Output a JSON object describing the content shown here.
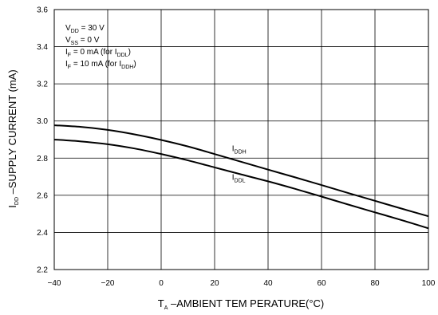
{
  "chart_data": {
    "type": "line",
    "title": "",
    "xlabel": {
      "main": "T",
      "sub": "A",
      "rest": " –AMBIENT TEM PERATURE(°C)"
    },
    "ylabel": {
      "main": "I",
      "sub": "DD",
      "rest": " –SUPPLY CURRENT (mA)"
    },
    "xlim": [
      -40,
      100
    ],
    "ylim": [
      2.2,
      3.6
    ],
    "xticks": [
      -40,
      -20,
      0,
      20,
      40,
      60,
      80,
      100
    ],
    "xtick_labels": [
      "−40",
      "−20",
      "0",
      "20",
      "40",
      "60",
      "80",
      "100"
    ],
    "yticks": [
      2.2,
      2.4,
      2.6,
      2.8,
      3.0,
      3.2,
      3.4,
      3.6
    ],
    "ytick_labels": [
      "2.2",
      "2.4",
      "2.6",
      "2.8",
      "3.0",
      "3.2",
      "3.4",
      "3.6"
    ],
    "grid": true,
    "conditions": [
      [
        {
          "t": "V"
        },
        {
          "t": "DD",
          "sub": true
        },
        {
          "t": " = 30 V"
        }
      ],
      [
        {
          "t": "V"
        },
        {
          "t": "SS",
          "sub": true
        },
        {
          "t": " = 0 V"
        }
      ],
      [
        {
          "t": "I"
        },
        {
          "t": "F",
          "sub": true
        },
        {
          "t": " = 0 mA  (for I"
        },
        {
          "t": "DDL",
          "sub": true
        },
        {
          "t": ")"
        }
      ],
      [
        {
          "t": "I"
        },
        {
          "t": "F",
          "sub": true
        },
        {
          "t": " = 10 mA  (for I"
        },
        {
          "t": "DDH",
          "sub": true
        },
        {
          "t": ")"
        }
      ]
    ],
    "series": [
      {
        "label_main": "I",
        "label_sub": "DDH",
        "label_at": [
          25,
          2.838
        ],
        "color": "#000000",
        "x": [
          -40,
          -30,
          -20,
          -10,
          0,
          10,
          20,
          30,
          40,
          50,
          60,
          70,
          80,
          90,
          100
        ],
        "y": [
          2.977,
          2.968,
          2.952,
          2.928,
          2.898,
          2.863,
          2.822,
          2.78,
          2.738,
          2.697,
          2.655,
          2.612,
          2.57,
          2.528,
          2.487
        ]
      },
      {
        "label_main": "I",
        "label_sub": "DDL",
        "label_at": [
          25,
          2.683
        ],
        "color": "#000000",
        "x": [
          -40,
          -30,
          -20,
          -10,
          0,
          10,
          20,
          30,
          40,
          50,
          60,
          70,
          80,
          90,
          100
        ],
        "y": [
          2.9,
          2.89,
          2.875,
          2.852,
          2.822,
          2.788,
          2.75,
          2.712,
          2.675,
          2.635,
          2.593,
          2.55,
          2.508,
          2.466,
          2.422
        ]
      }
    ]
  }
}
